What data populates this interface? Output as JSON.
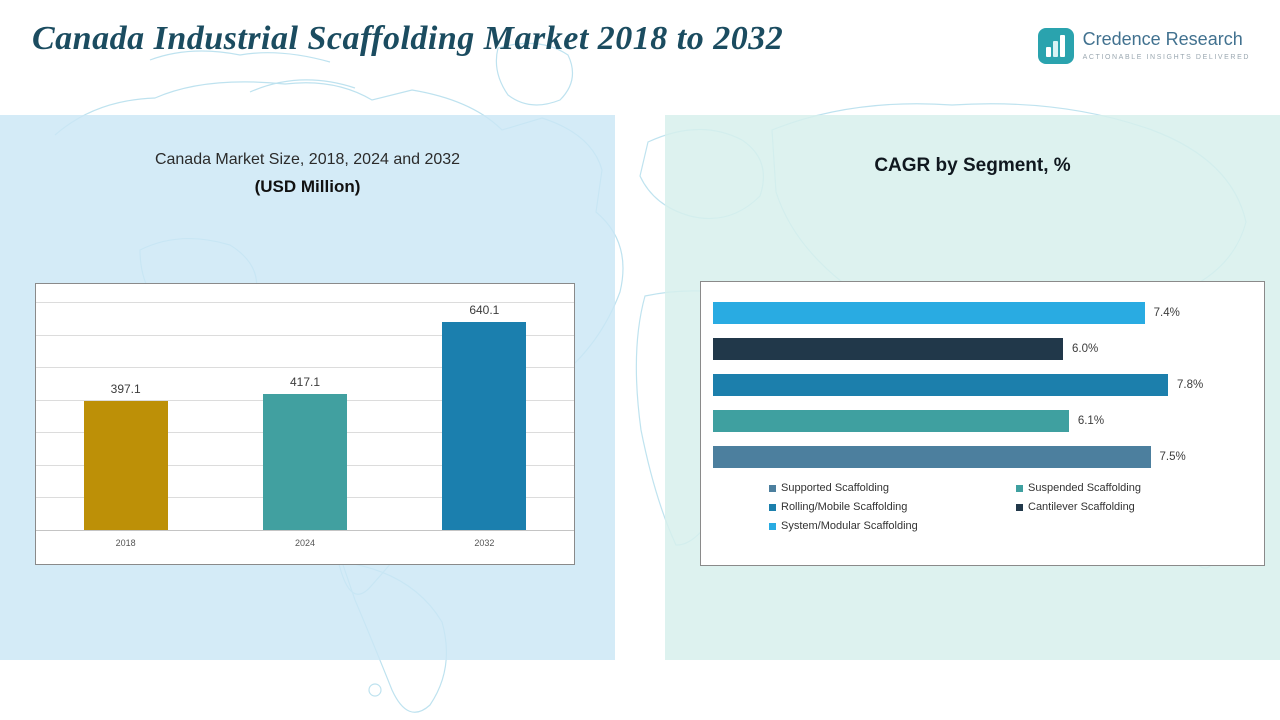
{
  "header": {
    "title": "Canada Industrial Scaffolding Market 2018 to 2032",
    "logo_name": "Credence Research",
    "logo_tagline": "Actionable Insights Delivered"
  },
  "left_panel": {
    "subtitle_line1": "Canada Market Size, 2018, 2024 and 2032",
    "subtitle_line2": "(USD Million)"
  },
  "right_panel": {
    "title": "CAGR by Segment, %"
  },
  "chart_data": [
    {
      "type": "bar",
      "title": "Canada Market Size, 2018, 2024 and 2032 (USD Million)",
      "categories": [
        "2018",
        "2024",
        "2032"
      ],
      "values": [
        397.1,
        417.1,
        640.1
      ],
      "labels": [
        "397.1",
        "417.1",
        "640.1"
      ],
      "colors": [
        "#bd9007",
        "#41a0a0",
        "#1b7fae"
      ],
      "ylim": [
        0,
        700
      ],
      "grid": true,
      "legend_position": "none"
    },
    {
      "type": "bar",
      "orientation": "horizontal",
      "title": "CAGR by Segment, %",
      "bars": [
        {
          "name": "System/Modular Scaffolding",
          "value": 7.4,
          "label": "7.4%",
          "color": "#29abe2"
        },
        {
          "name": "Cantilever Scaffolding",
          "value": 6.0,
          "label": "6.0%",
          "color": "#21384a"
        },
        {
          "name": "Rolling/Mobile Scaffolding",
          "value": 7.8,
          "label": "7.8%",
          "color": "#1c7fac"
        },
        {
          "name": "Suspended Scaffolding",
          "value": 6.1,
          "label": "6.1%",
          "color": "#3fa0a0"
        },
        {
          "name": "Supported Scaffolding",
          "value": 7.5,
          "label": "7.5%",
          "color": "#4c7f9e"
        }
      ],
      "xlim": [
        0,
        8.2
      ],
      "grid": false,
      "legend_position": "bottom",
      "legend": [
        {
          "label": "Supported Scaffolding",
          "color": "#4c7f9e"
        },
        {
          "label": "Suspended Scaffolding",
          "color": "#3fa0a0"
        },
        {
          "label": "Rolling/Mobile Scaffolding",
          "color": "#1c7fac"
        },
        {
          "label": "Cantilever Scaffolding",
          "color": "#21384a"
        },
        {
          "label": "System/Modular Scaffolding",
          "color": "#29abe2"
        }
      ]
    }
  ]
}
